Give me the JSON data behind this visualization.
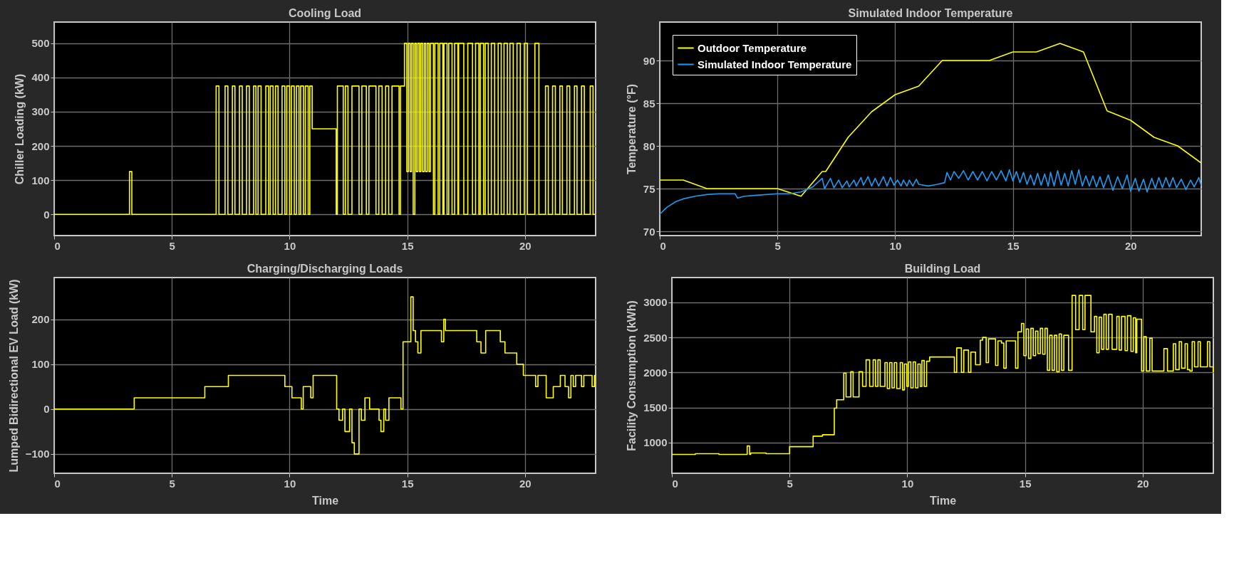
{
  "chart_data": [
    {
      "type": "step",
      "title": "Cooling Load",
      "ylabel": "Chiller Loading (kW)",
      "xlim": [
        0,
        23
      ],
      "xticks": [
        0,
        5,
        10,
        15,
        20
      ],
      "ylim": [
        -62,
        562
      ],
      "yticks": [
        0,
        100,
        200,
        300,
        400,
        500
      ],
      "grid": true,
      "legend": false,
      "series": [
        {
          "color": "#ffff00",
          "x": [
            0,
            3.2,
            3.3,
            6.88,
            7.0,
            7.26,
            7.38,
            7.57,
            7.68,
            7.87,
            7.99,
            8.17,
            8.29,
            8.47,
            8.57,
            8.66,
            8.79,
            8.99,
            9.11,
            9.18,
            9.3,
            9.4,
            9.51,
            9.68,
            9.8,
            9.88,
            10.0,
            10.08,
            10.2,
            10.29,
            10.4,
            10.47,
            10.59,
            10.67,
            10.79,
            10.86,
            10.96,
            11.98,
            12.03,
            12.28,
            12.37,
            12.48,
            12.65,
            12.95,
            13.07,
            13.26,
            13.37,
            13.67,
            13.79,
            13.93,
            14.08,
            14.21,
            14.35,
            14.65,
            14.71,
            14.88,
            14.98,
            15.05,
            15.12,
            15.18,
            15.25,
            15.32,
            15.38,
            15.45,
            15.52,
            15.58,
            15.65,
            15.72,
            15.78,
            15.85,
            15.92,
            15.98,
            16.11,
            16.17,
            16.31,
            16.38,
            16.51,
            16.56,
            16.69,
            16.76,
            16.9,
            17.01,
            17.15,
            17.18,
            17.4,
            17.57,
            17.77,
            17.9,
            18.04,
            18.1,
            18.24,
            18.31,
            18.44,
            18.57,
            18.71,
            18.86,
            18.99,
            19.11,
            19.25,
            19.36,
            19.5,
            19.66,
            19.8,
            19.97,
            20.1,
            20.42,
            20.59,
            20.87,
            20.99,
            21.17,
            21.29,
            21.48,
            21.59,
            21.78,
            21.9,
            22.1,
            22.21,
            22.4,
            22.52,
            22.77,
            22.89,
            23
          ],
          "values": [
            0,
            125,
            0,
            375,
            0,
            375,
            0,
            375,
            0,
            375,
            0,
            375,
            0,
            375,
            0,
            375,
            0,
            375,
            0,
            375,
            0,
            375,
            0,
            375,
            0,
            375,
            0,
            375,
            0,
            375,
            0,
            375,
            0,
            375,
            0,
            375,
            250,
            0,
            375,
            0,
            375,
            0,
            375,
            0,
            375,
            0,
            375,
            0,
            375,
            0,
            375,
            0,
            375,
            0,
            375,
            500,
            125,
            500,
            125,
            500,
            0,
            500,
            125,
            500,
            125,
            500,
            125,
            500,
            125,
            500,
            125,
            500,
            0,
            500,
            0,
            500,
            0,
            500,
            0,
            500,
            0,
            500,
            0,
            500,
            0,
            500,
            0,
            500,
            0,
            500,
            0,
            500,
            0,
            500,
            0,
            500,
            0,
            500,
            0,
            500,
            0,
            500,
            0,
            500,
            0,
            500,
            0,
            375,
            0,
            375,
            0,
            375,
            0,
            375,
            0,
            375,
            0,
            375,
            0,
            375,
            0,
            0
          ]
        }
      ]
    },
    {
      "type": "line",
      "title": "Simulated Indoor Temperature",
      "ylabel": "Temperature (°F)",
      "xlim": [
        0,
        23
      ],
      "xticks": [
        0,
        5,
        10,
        15,
        20
      ],
      "ylim": [
        69.5,
        94.5
      ],
      "yticks": [
        70,
        75,
        80,
        85,
        90
      ],
      "grid": true,
      "legend": "top left",
      "series": [
        {
          "name": "Outdoor Temperature",
          "color": "#ffff00",
          "x": [
            0,
            1,
            2,
            3,
            4,
            5,
            6,
            6.9,
            7.05,
            8,
            9,
            10,
            11,
            12,
            13,
            14,
            15,
            16,
            17,
            18,
            19,
            20,
            21,
            22,
            23
          ],
          "values": [
            76,
            76,
            75,
            75,
            75,
            75,
            74.1,
            77,
            77,
            81,
            84,
            86,
            87,
            90,
            90,
            90,
            91,
            91,
            92,
            91,
            84.1,
            83,
            81,
            80,
            78
          ]
        },
        {
          "name": "Simulated Indoor Temperature",
          "color": "#1e9bf0",
          "x": [
            0,
            0.3,
            0.7,
            1,
            1.5,
            2,
            2.5,
            3.2,
            3.3,
            3.6,
            4,
            5,
            5.5,
            6,
            6.5,
            6.9,
            7.0,
            7.25,
            7.4,
            7.6,
            7.75,
            7.95,
            8.05,
            8.25,
            8.35,
            8.55,
            8.65,
            8.85,
            9.0,
            9.15,
            9.3,
            9.5,
            9.65,
            9.8,
            9.95,
            10.1,
            10.25,
            10.35,
            10.5,
            10.6,
            10.75,
            10.9,
            11.0,
            11.4,
            11.8,
            12.1,
            12.2,
            12.35,
            12.5,
            12.7,
            12.9,
            13.1,
            13.3,
            13.5,
            13.7,
            13.9,
            14.1,
            14.3,
            14.5,
            14.7,
            14.85,
            15.0,
            15.15,
            15.3,
            15.45,
            15.6,
            15.75,
            15.9,
            16.05,
            16.2,
            16.35,
            16.5,
            16.6,
            16.75,
            16.9,
            17.05,
            17.2,
            17.35,
            17.5,
            17.65,
            17.8,
            17.95,
            18.1,
            18.25,
            18.4,
            18.55,
            18.7,
            18.85,
            19.05,
            19.25,
            19.45,
            19.65,
            19.85,
            20.0,
            20.2,
            20.35,
            20.55,
            20.7,
            20.9,
            21.05,
            21.2,
            21.35,
            21.5,
            21.65,
            21.8,
            21.95,
            22.15,
            22.35,
            22.55,
            22.7,
            22.9,
            23
          ],
          "values": [
            72,
            72.8,
            73.5,
            73.8,
            74.1,
            74.3,
            74.4,
            74.4,
            73.9,
            74.1,
            74.2,
            74.4,
            74.4,
            74.6,
            75.2,
            76.2,
            75,
            76.2,
            75.1,
            76,
            75.1,
            75.9,
            75.2,
            76,
            75.3,
            76.3,
            75.4,
            76.4,
            75.3,
            76.2,
            75.3,
            76.4,
            75.3,
            76.3,
            75.4,
            76,
            75.3,
            76,
            75.3,
            76,
            75.3,
            76.1,
            75.5,
            75.3,
            75.5,
            75.7,
            76.9,
            76,
            77,
            76.2,
            77.1,
            76,
            77,
            76,
            77,
            75.9,
            77,
            76,
            77.1,
            75.9,
            77.2,
            75.9,
            77,
            75.7,
            76.9,
            75.5,
            76.6,
            75.4,
            76.8,
            75.4,
            76.7,
            75.3,
            76.9,
            75.3,
            77.1,
            75.4,
            76.8,
            75.3,
            77.1,
            75.5,
            77.2,
            75.3,
            76.5,
            75.3,
            76.5,
            75.2,
            76.4,
            75.1,
            76.6,
            74.8,
            76.4,
            75,
            76.6,
            74.7,
            76.2,
            74.7,
            76.1,
            74.6,
            76.2,
            75,
            76.3,
            75.1,
            76.3,
            75.2,
            76.3,
            75.1,
            76.1,
            74.9,
            76,
            75.2,
            76.3,
            75.3
          ]
        }
      ]
    },
    {
      "type": "step",
      "title": "Charging/Discharging Loads",
      "xlabel": "Time",
      "ylabel": "Lumped Bidirectional EV Load (kW)",
      "xlim": [
        0,
        23
      ],
      "xticks": [
        0,
        5,
        10,
        15,
        20
      ],
      "ylim": [
        -143,
        293
      ],
      "yticks": [
        -100,
        0,
        100,
        200
      ],
      "grid": true,
      "legend": false,
      "series": [
        {
          "color": "#ffff00",
          "x": [
            0,
            3.4,
            6.4,
            7.4,
            9.8,
            10.1,
            10.5,
            10.58,
            10.9,
            11.0,
            12.0,
            12.1,
            12.25,
            12.35,
            12.55,
            12.65,
            12.75,
            12.95,
            13.05,
            13.2,
            13.4,
            13.8,
            13.88,
            14.0,
            14.08,
            14.22,
            14.73,
            14.82,
            15.15,
            15.25,
            15.35,
            15.45,
            15.58,
            16.45,
            16.55,
            16.62,
            17.95,
            18.13,
            18.33,
            18.95,
            19.15,
            19.65,
            19.93,
            20.45,
            20.55,
            20.9,
            21.2,
            21.5,
            21.7,
            21.85,
            21.95,
            22.05,
            22.15,
            22.4,
            22.5,
            22.85,
            22.95,
            23
          ],
          "values": [
            0,
            25,
            50,
            75,
            50,
            25,
            0,
            50,
            25,
            75,
            0,
            -25,
            0,
            -50,
            0,
            -75,
            -100,
            0,
            -25,
            25,
            0,
            -25,
            -50,
            0,
            -25,
            25,
            0,
            150,
            250,
            175,
            150,
            125,
            175,
            150,
            200,
            175,
            150,
            125,
            175,
            150,
            125,
            100,
            75,
            50,
            75,
            25,
            50,
            75,
            50,
            25,
            75,
            50,
            75,
            50,
            75,
            50,
            75,
            75
          ]
        }
      ]
    },
    {
      "type": "step",
      "title": "Building Load",
      "xlabel": "Time",
      "ylabel": "Facility Consumption (kWh)",
      "xlim": [
        0,
        23
      ],
      "xticks": [
        0,
        5,
        10,
        15,
        20
      ],
      "ylim": [
        560,
        3355
      ],
      "yticks": [
        1000,
        1500,
        2000,
        2500,
        3000
      ],
      "grid": true,
      "legend": false,
      "series": [
        {
          "color": "#ffff00",
          "x": [
            0,
            1,
            2,
            3.2,
            3.3,
            3.35,
            4,
            5,
            6,
            6.4,
            6.9,
            7.0,
            7.3,
            7.4,
            7.6,
            7.7,
            7.95,
            8.1,
            8.25,
            8.4,
            8.55,
            8.65,
            8.75,
            8.85,
            9.05,
            9.15,
            9.25,
            9.35,
            9.45,
            9.55,
            9.7,
            9.8,
            9.88,
            9.98,
            10.05,
            10.15,
            10.25,
            10.35,
            10.45,
            10.55,
            10.62,
            10.72,
            10.82,
            10.95,
            12.0,
            12.1,
            12.3,
            12.4,
            12.6,
            12.7,
            12.9,
            13.1,
            13.2,
            13.35,
            13.45,
            13.75,
            13.85,
            14.0,
            14.1,
            14.2,
            14.6,
            14.7,
            14.85,
            14.95,
            15.05,
            15.15,
            15.25,
            15.35,
            15.45,
            15.55,
            15.65,
            15.75,
            15.85,
            15.95,
            16.05,
            16.15,
            16.25,
            16.35,
            16.45,
            16.55,
            16.65,
            16.85,
            17.0,
            17.15,
            17.3,
            17.45,
            17.55,
            17.8,
            17.95,
            18.05,
            18.15,
            18.25,
            18.35,
            18.45,
            18.55,
            18.7,
            18.9,
            19.0,
            19.1,
            19.25,
            19.35,
            19.5,
            19.6,
            19.7,
            19.75,
            19.95,
            20.05,
            20.15,
            20.3,
            20.4,
            20.9,
            21.05,
            21.3,
            21.4,
            21.55,
            21.65,
            21.8,
            21.9,
            22.0,
            22.1,
            22.2,
            22.35,
            22.45,
            22.75,
            22.85,
            23.0
          ],
          "values": [
            830,
            840,
            830,
            950,
            830,
            850,
            840,
            940,
            1090,
            1110,
            1490,
            1610,
            1990,
            1650,
            2010,
            1650,
            2010,
            1800,
            2180,
            1800,
            2180,
            1800,
            2180,
            1800,
            2140,
            1770,
            2140,
            1780,
            2140,
            1770,
            2140,
            1750,
            2120,
            1800,
            2150,
            1780,
            2150,
            1780,
            2120,
            1800,
            2170,
            1800,
            2160,
            2220,
            2000,
            2350,
            2000,
            2320,
            2000,
            2290,
            2110,
            2460,
            2500,
            2140,
            2480,
            2100,
            2450,
            2420,
            2060,
            2450,
            2060,
            2580,
            2700,
            2240,
            2620,
            2200,
            2630,
            2240,
            2590,
            2270,
            2630,
            2260,
            2630,
            2030,
            2530,
            2030,
            2530,
            2010,
            2550,
            2030,
            2530,
            2030,
            3100,
            2610,
            3100,
            2610,
            3100,
            2580,
            2800,
            2280,
            2790,
            2330,
            2830,
            2330,
            2830,
            2330,
            2800,
            2320,
            2800,
            2310,
            2810,
            2300,
            2780,
            2280,
            2760,
            2020,
            2510,
            2020,
            2490,
            2020,
            2340,
            2020,
            2410,
            2040,
            2440,
            2060,
            2410,
            2040,
            2020,
            2440,
            2080,
            2440,
            2080,
            2440,
            2080,
            2000
          ]
        }
      ]
    }
  ]
}
